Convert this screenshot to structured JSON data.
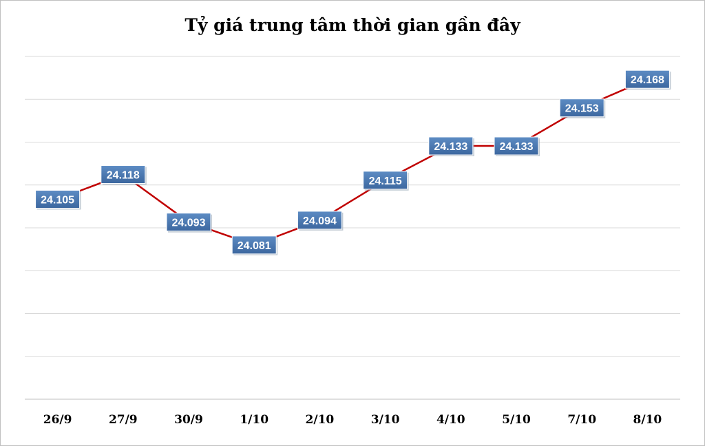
{
  "chart_data": {
    "type": "line",
    "title": "Tỷ giá trung tâm thời gian gần đây",
    "xlabel": "",
    "ylabel": "",
    "categories": [
      "26/9",
      "27/9",
      "30/9",
      "1/10",
      "2/10",
      "3/10",
      "4/10",
      "5/10",
      "7/10",
      "8/10"
    ],
    "series": [
      {
        "values": [
          24105,
          24118,
          24093,
          24081,
          24094,
          24115,
          24133,
          24133,
          24153,
          24168
        ],
        "labels": [
          "24.105",
          "24.118",
          "24.093",
          "24.081",
          "24.094",
          "24.115",
          "24.133",
          "24.133",
          "24.153",
          "24.168"
        ]
      }
    ],
    "ylim": [
      24000,
      24180
    ],
    "grid": true,
    "line_color": "#c00000",
    "label_bg_color": "#4a78b0",
    "label_text_color": "#ffffff"
  }
}
